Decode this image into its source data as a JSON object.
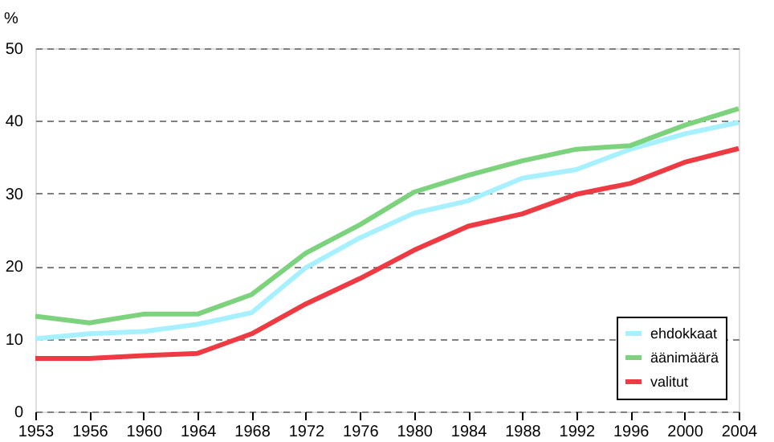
{
  "chart_data": {
    "type": "line",
    "ylabel": "%",
    "categories": [
      "1953",
      "1956",
      "1960",
      "1964",
      "1968",
      "1972",
      "1976",
      "1980",
      "1984",
      "1988",
      "1992",
      "1996",
      "2000",
      "2004"
    ],
    "series": [
      {
        "name": "ehdokkaat",
        "color": "#a6f0ff",
        "values": [
          10.0,
          10.7,
          11.0,
          12.0,
          13.6,
          19.8,
          23.9,
          27.3,
          29.0,
          32.1,
          33.3,
          36.1,
          38.2,
          39.8
        ]
      },
      {
        "name": "äänimäärä",
        "color": "#7dd37d",
        "values": [
          13.1,
          12.2,
          13.4,
          13.4,
          16.1,
          21.8,
          25.7,
          30.2,
          32.5,
          34.5,
          36.1,
          36.6,
          39.4,
          41.7
        ]
      },
      {
        "name": "valitut",
        "color": "#ee3a43",
        "values": [
          7.3,
          7.3,
          7.7,
          8.0,
          10.7,
          14.8,
          18.3,
          22.2,
          25.5,
          27.2,
          29.9,
          31.4,
          34.3,
          36.2
        ]
      }
    ],
    "ylim": [
      0,
      50
    ],
    "yticks": [
      0,
      10,
      20,
      30,
      40,
      50
    ],
    "grid": "y",
    "legend": "bottom right",
    "marker": "none",
    "line_style": "solid"
  }
}
